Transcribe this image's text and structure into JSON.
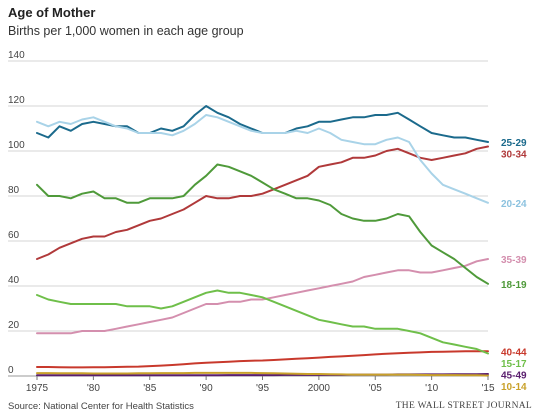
{
  "header": {
    "title": "Age of Mother",
    "subtitle": "Births per 1,000 women in each age group"
  },
  "footer": {
    "source": "Source: National Center for Health Statistics",
    "publisher": "THE WALL STREET JOURNAL"
  },
  "chart_data": {
    "type": "line",
    "title": "Age of Mother",
    "subtitle": "Births per 1,000 women in each age group",
    "xlabel": "",
    "ylabel": "",
    "xlim": [
      1975,
      2015
    ],
    "ylim": [
      0,
      140
    ],
    "grid": true,
    "legend": "direct labels at right end of lines",
    "x_ticks": [
      {
        "value": 1975,
        "label": "1975"
      },
      {
        "value": 1980,
        "label": "'80"
      },
      {
        "value": 1985,
        "label": "'85"
      },
      {
        "value": 1990,
        "label": "'90"
      },
      {
        "value": 1995,
        "label": "'95"
      },
      {
        "value": 2000,
        "label": "2000"
      },
      {
        "value": 2005,
        "label": "'05"
      },
      {
        "value": 2010,
        "label": "'10"
      },
      {
        "value": 2015,
        "label": "'15"
      }
    ],
    "y_ticks": [
      0,
      20,
      40,
      60,
      80,
      100,
      120,
      140
    ],
    "x": [
      1975,
      1976,
      1977,
      1978,
      1979,
      1980,
      1981,
      1982,
      1983,
      1984,
      1985,
      1986,
      1987,
      1988,
      1989,
      1990,
      1991,
      1992,
      1993,
      1994,
      1995,
      1996,
      1997,
      1998,
      1999,
      2000,
      2001,
      2002,
      2003,
      2004,
      2005,
      2006,
      2007,
      2008,
      2009,
      2010,
      2011,
      2012,
      2013,
      2014,
      2015
    ],
    "series": [
      {
        "name": "25-29",
        "color": "#1b6a8c",
        "values": [
          108,
          106,
          111,
          109,
          112,
          113,
          112,
          111,
          111,
          108,
          108,
          110,
          109,
          111,
          116,
          120,
          117,
          115,
          112,
          110,
          108,
          108,
          108,
          110,
          111,
          113,
          113,
          114,
          115,
          115,
          116,
          116,
          117,
          114,
          111,
          108,
          107,
          106,
          106,
          105,
          104
        ]
      },
      {
        "name": "30-34",
        "color": "#b0393a",
        "values": [
          52,
          54,
          57,
          59,
          61,
          62,
          62,
          64,
          65,
          67,
          69,
          70,
          72,
          74,
          77,
          80,
          79,
          79,
          80,
          80,
          81,
          83,
          85,
          87,
          89,
          93,
          94,
          95,
          97,
          97,
          98,
          100,
          101,
          99,
          97,
          96,
          97,
          98,
          99,
          101,
          102
        ]
      },
      {
        "name": "20-24",
        "color": "#a9d3e8",
        "values": [
          113,
          111,
          113,
          112,
          114,
          115,
          113,
          111,
          110,
          108,
          108,
          108,
          107,
          109,
          112,
          116,
          115,
          113,
          111,
          109,
          108,
          108,
          108,
          109,
          108,
          110,
          108,
          105,
          104,
          103,
          103,
          105,
          106,
          104,
          96,
          90,
          85,
          83,
          81,
          79,
          77
        ]
      },
      {
        "name": "35-39",
        "color": "#d48fae",
        "values": [
          19,
          19,
          19,
          19,
          20,
          20,
          20,
          21,
          22,
          23,
          24,
          25,
          26,
          28,
          30,
          32,
          32,
          33,
          33,
          34,
          34,
          35,
          36,
          37,
          38,
          39,
          40,
          41,
          42,
          44,
          45,
          46,
          47,
          47,
          46,
          46,
          47,
          48,
          49,
          51,
          52
        ]
      },
      {
        "name": "18-19",
        "color": "#4f9a3a",
        "values": [
          85,
          80,
          80,
          79,
          81,
          82,
          79,
          79,
          77,
          77,
          79,
          79,
          79,
          80,
          85,
          89,
          94,
          93,
          91,
          89,
          86,
          83,
          81,
          79,
          79,
          78,
          76,
          72,
          70,
          69,
          69,
          70,
          72,
          71,
          64,
          58,
          55,
          52,
          48,
          44,
          41
        ]
      },
      {
        "name": "40-44",
        "color": "#c8392c",
        "values": [
          4,
          4,
          3.9,
          3.8,
          3.8,
          3.9,
          3.9,
          4,
          4.1,
          4.2,
          4.4,
          4.6,
          4.9,
          5.2,
          5.6,
          5.9,
          6.1,
          6.3,
          6.6,
          6.8,
          6.9,
          7.1,
          7.4,
          7.7,
          7.9,
          8.2,
          8.5,
          8.7,
          9,
          9.3,
          9.6,
          9.9,
          10.1,
          10.3,
          10.5,
          10.7,
          10.8,
          10.9,
          11,
          11,
          11
        ]
      },
      {
        "name": "15-17",
        "color": "#6fbf4a",
        "values": [
          36,
          34,
          33,
          32,
          32,
          32,
          32,
          32,
          31,
          31,
          31,
          30,
          31,
          33,
          35,
          37,
          38,
          37,
          37,
          36,
          35,
          33,
          31,
          29,
          27,
          25,
          24,
          23,
          22,
          22,
          21,
          21,
          21,
          20,
          19,
          17,
          15,
          14,
          13,
          12,
          10
        ]
      },
      {
        "name": "45-49",
        "color": "#5a1e6e",
        "values": [
          0.3,
          0.3,
          0.3,
          0.3,
          0.3,
          0.3,
          0.3,
          0.3,
          0.3,
          0.3,
          0.3,
          0.3,
          0.3,
          0.3,
          0.3,
          0.3,
          0.3,
          0.4,
          0.4,
          0.4,
          0.4,
          0.4,
          0.5,
          0.5,
          0.5,
          0.5,
          0.5,
          0.5,
          0.6,
          0.6,
          0.6,
          0.6,
          0.7,
          0.7,
          0.7,
          0.7,
          0.7,
          0.8,
          0.8,
          0.8,
          0.9
        ]
      },
      {
        "name": "10-14",
        "color": "#c9a12a",
        "values": [
          1.3,
          1.3,
          1.2,
          1.2,
          1.2,
          1.1,
          1.1,
          1.1,
          1.1,
          1.2,
          1.2,
          1.3,
          1.3,
          1.3,
          1.4,
          1.4,
          1.4,
          1.4,
          1.4,
          1.4,
          1.3,
          1.2,
          1.1,
          1,
          0.9,
          0.9,
          0.8,
          0.7,
          0.6,
          0.6,
          0.6,
          0.6,
          0.6,
          0.6,
          0.5,
          0.4,
          0.4,
          0.4,
          0.3,
          0.3,
          0.2
        ]
      }
    ],
    "end_labels": [
      {
        "series": "25-29",
        "text": "25-29",
        "color": "#1b6a8c"
      },
      {
        "series": "30-34",
        "text": "30-34",
        "color": "#b0393a"
      },
      {
        "series": "20-24",
        "text": "20-24",
        "color": "#8cc2df"
      },
      {
        "series": "35-39",
        "text": "35-39",
        "color": "#d48fae"
      },
      {
        "series": "18-19",
        "text": "18-19",
        "color": "#4f9a3a"
      },
      {
        "series": "40-44",
        "text": "40-44",
        "color": "#c8392c"
      },
      {
        "series": "15-17",
        "text": "15-17",
        "color": "#6fbf4a"
      },
      {
        "series": "45-49",
        "text": "45-49",
        "color": "#5a1e6e"
      },
      {
        "series": "10-14",
        "text": "10-14",
        "color": "#c9a12a"
      }
    ]
  }
}
